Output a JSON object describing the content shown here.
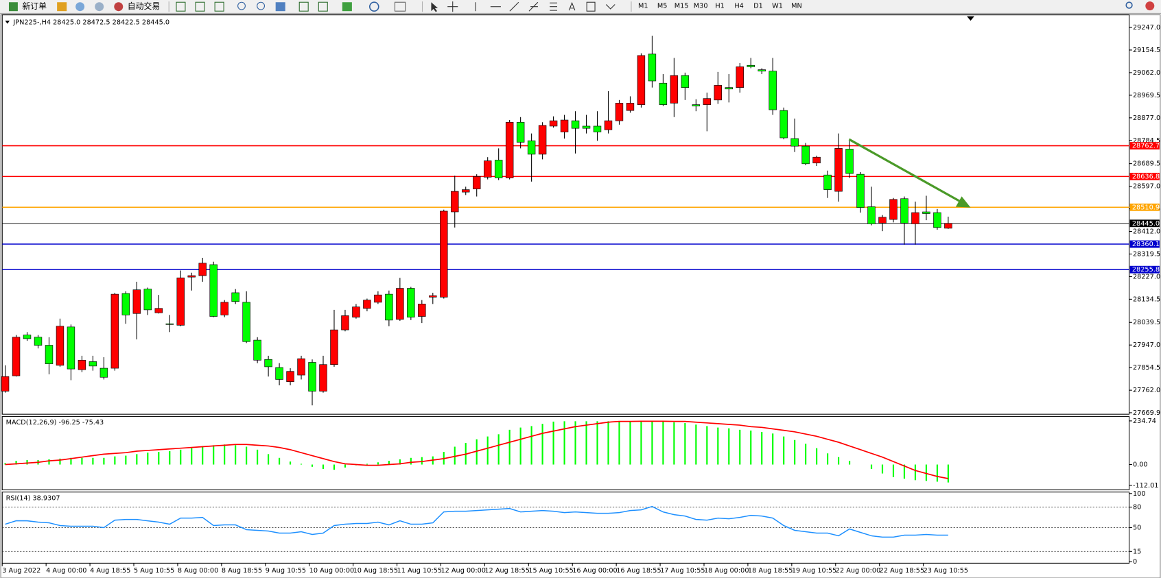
{
  "toolbar": {
    "order_button": "新订单",
    "auto_trade": "自动交易",
    "timeframes": [
      "M1",
      "M5",
      "M15",
      "M30",
      "H1",
      "H4",
      "D1",
      "W1",
      "MN"
    ]
  },
  "chart_data": [
    {
      "type": "candlestick",
      "title": "JPN225-,H4  28425.0 28472.5 28422.5 28445.0",
      "up_color": "#ff0000",
      "down_color": "#00ff00",
      "categories": [
        "3 Aug 2022",
        null,
        null,
        null,
        "4 Aug 00:00",
        null,
        null,
        null,
        "4 Aug 18:55",
        null,
        null,
        null,
        "5 Aug 10:55",
        null,
        null,
        null,
        "8 Aug 00:00",
        null,
        null,
        null,
        "8 Aug 18:55",
        null,
        null,
        null,
        "9 Aug 10:55",
        null,
        null,
        null,
        "10 Aug 00:00",
        null,
        null,
        null,
        "10 Aug 18:55",
        null,
        null,
        null,
        "11 Aug 10:55",
        null,
        null,
        null,
        "12 Aug 00:00",
        null,
        null,
        null,
        "12 Aug 18:55",
        null,
        null,
        null,
        "15 Aug 10:55",
        null,
        null,
        null,
        "16 Aug 00:00",
        null,
        null,
        null,
        "16 Aug 18:55",
        null,
        null,
        null,
        "17 Aug 10:55",
        null,
        null,
        null,
        "18 Aug 00:00",
        null,
        null,
        null,
        "18 Aug 18:55",
        null,
        null,
        null,
        "19 Aug 10:55",
        null,
        null,
        null,
        "22 Aug 00:00",
        null,
        null,
        null,
        "22 Aug 18:55",
        null,
        null,
        null,
        "23 Aug 10:55",
        null,
        null
      ],
      "open": [
        27758,
        27821,
        27988,
        27979,
        27946,
        27864,
        28021,
        27846,
        27879,
        27852,
        27852,
        28158,
        28076,
        28176,
        28079,
        28034,
        28028,
        28225,
        28231,
        28276,
        28070,
        28161,
        28122,
        27967,
        27888,
        27855,
        27797,
        27824,
        27876,
        27758,
        27867,
        28009,
        28061,
        28097,
        28122,
        28155,
        28052,
        28179,
        28064,
        28143,
        28143,
        28492,
        28573,
        28586,
        28634,
        28704,
        28631,
        28859,
        28783,
        28728,
        28843,
        28819,
        28865,
        28843,
        28843,
        28828,
        28865,
        28907,
        28931,
        29138,
        29019,
        28937,
        29050,
        28931,
        28931,
        28950,
        29001,
        29001,
        29092,
        29074,
        29068,
        28907,
        28792,
        28761,
        28692,
        28643,
        28576,
        28749,
        28646,
        28513,
        28446,
        28461,
        28546,
        28443,
        28492,
        28489,
        28425
      ],
      "high": [
        27864,
        27988,
        28000,
        27988,
        27979,
        28055,
        28031,
        27903,
        27903,
        27897,
        28161,
        28167,
        28206,
        28182,
        28152,
        28070,
        28252,
        28243,
        28304,
        28288,
        28131,
        28176,
        28167,
        27979,
        27903,
        27873,
        27852,
        27903,
        27888,
        27903,
        28091,
        28091,
        28115,
        28137,
        28167,
        28170,
        28222,
        28185,
        28131,
        28161,
        28501,
        28640,
        28595,
        28646,
        28716,
        28752,
        28868,
        28880,
        28813,
        28859,
        28883,
        28889,
        28904,
        28889,
        28904,
        28986,
        28950,
        28965,
        29141,
        29213,
        29056,
        29122,
        29062,
        28953,
        28980,
        29065,
        29056,
        29101,
        29122,
        29080,
        29122,
        28919,
        28874,
        28774,
        28722,
        28661,
        28813,
        28783,
        28655,
        28595,
        28479,
        28549,
        28555,
        28534,
        28558,
        28504,
        28472.5
      ],
      "low": [
        27752,
        27818,
        27964,
        27933,
        27827,
        27858,
        27803,
        27836,
        27842,
        27806,
        27842,
        28034,
        27970,
        28070,
        28076,
        28000,
        28024,
        28170,
        28206,
        28061,
        28061,
        28115,
        27955,
        27873,
        27818,
        27782,
        27782,
        27806,
        27700,
        27752,
        27858,
        28003,
        28055,
        28085,
        28115,
        28024,
        28046,
        28049,
        28037,
        28115,
        28137,
        28428,
        28561,
        28555,
        28625,
        28622,
        28625,
        28752,
        28616,
        28707,
        28837,
        28792,
        28731,
        28813,
        28783,
        28813,
        28849,
        28898,
        28919,
        29001,
        28925,
        28880,
        28950,
        28904,
        28822,
        28934,
        28940,
        28980,
        29080,
        29056,
        28889,
        28789,
        28737,
        28683,
        28680,
        28549,
        28534,
        28631,
        28489,
        28437,
        28413,
        28449,
        28358,
        28358,
        28458,
        28419,
        28422.5
      ],
      "close": [
        27818,
        27979,
        27973,
        27946,
        27870,
        28024,
        27849,
        27885,
        27861,
        27815,
        28155,
        28070,
        28173,
        28091,
        28097,
        28031,
        28222,
        28231,
        28282,
        28064,
        28122,
        28125,
        27961,
        27885,
        27858,
        27806,
        27839,
        27891,
        27758,
        27867,
        28009,
        28067,
        28103,
        28131,
        28152,
        28049,
        28179,
        28061,
        28115,
        28149,
        28495,
        28576,
        28583,
        28637,
        28701,
        28631,
        28859,
        28777,
        28728,
        28846,
        28865,
        28868,
        28834,
        28834,
        28819,
        28865,
        28937,
        28937,
        29132,
        29028,
        28931,
        29050,
        29001,
        28925,
        28956,
        29010,
        28995,
        29086,
        29086,
        29068,
        28910,
        28795,
        28761,
        28689,
        28716,
        28583,
        28752,
        28649,
        28510,
        28443,
        28470,
        28543,
        28446,
        28489,
        28485,
        28428,
        28445
      ],
      "hlines": [
        {
          "value": 28762.7,
          "color": "#ff0000"
        },
        {
          "value": 28636.8,
          "color": "#ff0000"
        },
        {
          "value": 28510.9,
          "color": "#ffa500"
        },
        {
          "value": 28445,
          "label": "28445.0",
          "color": "#000000"
        },
        {
          "value": 28360.1,
          "color": "#0000cd"
        },
        {
          "value": 28255.8,
          "color": "#0000cd"
        }
      ],
      "ylim": [
        27663.7,
        29298.6
      ],
      "yticks": [
        {
          "value": 29247,
          "label": "29247.0"
        },
        29154.5,
        {
          "value": 29062,
          "label": "29062.0"
        },
        28969.5,
        {
          "value": 28877,
          "label": "28877.0"
        },
        28784.5,
        28689.5,
        {
          "value": 28597,
          "label": "28597.0"
        },
        28504.5,
        {
          "value": 28412,
          "label": "28412.0"
        },
        28319.5,
        {
          "value": 28227,
          "label": "28227.0"
        },
        28134.5,
        28039.5,
        {
          "value": 27947,
          "label": "27947.0"
        },
        27854.5,
        {
          "value": 27762,
          "label": "27762.0"
        },
        27669.9
      ]
    },
    {
      "type": "macd",
      "title": "MACD(12,26,9) -96.25 -75.43",
      "histogram": {
        "color": "#00ff00",
        "values": [
          8,
          20,
          24,
          24,
          28,
          32,
          36,
          36,
          36,
          36,
          44,
          48,
          56,
          64,
          68,
          72,
          80,
          88,
          100,
          104,
          108,
          104,
          96,
          80,
          56,
          36,
          16,
          4,
          -12,
          -24,
          -28,
          -16,
          -4,
          4,
          12,
          20,
          28,
          36,
          40,
          44,
          68,
          96,
          116,
          136,
          151,
          163,
          187,
          199,
          207,
          219,
          231,
          233,
          233,
          233,
          233,
          233,
          231,
          231,
          233,
          231,
          231,
          227,
          223,
          215,
          207,
          199,
          195,
          187,
          183,
          175,
          167,
          151,
          132,
          112,
          88,
          60,
          40,
          20,
          0,
          -24,
          -48,
          -68,
          -76,
          -84,
          -88,
          -92,
          -96.25
        ]
      },
      "signal": {
        "color": "#ff0000",
        "values": [
          0,
          4,
          8,
          12,
          20,
          24,
          32,
          40,
          48,
          56,
          60,
          64,
          72,
          76,
          80,
          84,
          88,
          92,
          96,
          100,
          104,
          108,
          108,
          104,
          100,
          92,
          80,
          64,
          48,
          32,
          16,
          4,
          0,
          -4,
          -4,
          0,
          4,
          12,
          16,
          24,
          32,
          44,
          56,
          72,
          88,
          104,
          120,
          136,
          152,
          168,
          180,
          192,
          204,
          212,
          220,
          228,
          232,
          232,
          233,
          233,
          233,
          232,
          232,
          228,
          224,
          220,
          216,
          212,
          204,
          200,
          192,
          184,
          176,
          164,
          152,
          136,
          120,
          100,
          80,
          60,
          40,
          16,
          -8,
          -32,
          -48,
          -64,
          -75.43
        ]
      },
      "ylim": [
        -135.9,
        258.7
      ],
      "yticks": [
        234.74,
        {
          "value": 0,
          "label": "0.00"
        },
        -112.01
      ]
    },
    {
      "type": "line",
      "title": "RSI(14) 38.9307",
      "color": "#1e90ff",
      "values": [
        55,
        60,
        60,
        58,
        57,
        53,
        52,
        52,
        52,
        50,
        61,
        62,
        62,
        60,
        58,
        55,
        64,
        64,
        65,
        53,
        54,
        54,
        47,
        46,
        45,
        42,
        42,
        44,
        40,
        42,
        53,
        55,
        56,
        56,
        58,
        54,
        60,
        55,
        55,
        57,
        73,
        74,
        74,
        75,
        76,
        77,
        78,
        73,
        74,
        75,
        74,
        72,
        73,
        72,
        71,
        71,
        72,
        75,
        76,
        81,
        73,
        69,
        67,
        62,
        61,
        64,
        63,
        65,
        68,
        67,
        64,
        53,
        46,
        44,
        42,
        42,
        38,
        48,
        43,
        38,
        36,
        36,
        39,
        39,
        40,
        39,
        38.9307
      ],
      "levels": [
        80,
        50,
        15
      ],
      "ylim": [
        0,
        100
      ],
      "yticks": [
        100,
        80,
        50,
        15,
        0
      ]
    }
  ]
}
